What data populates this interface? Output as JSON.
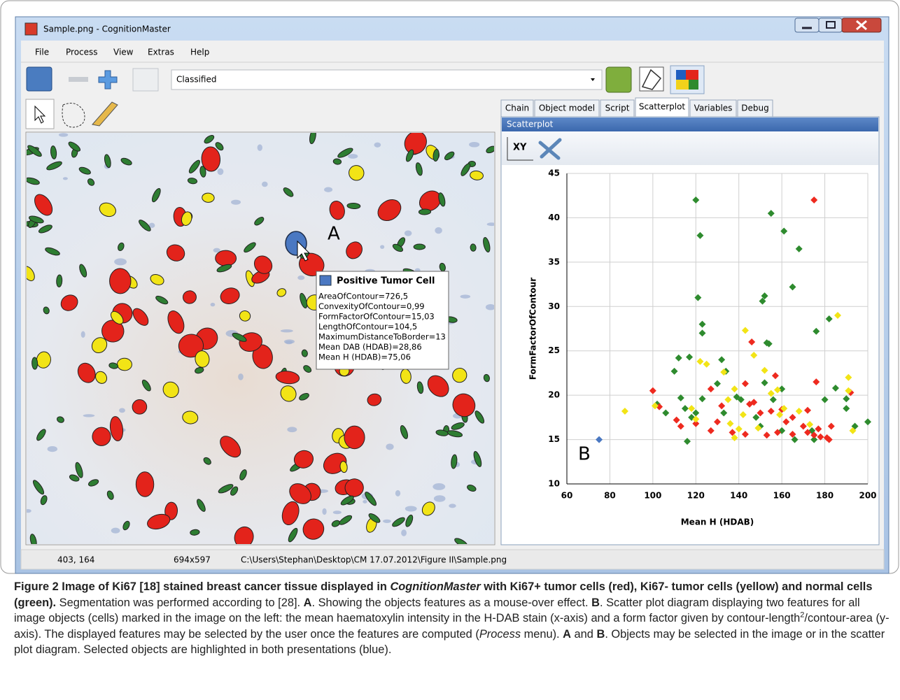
{
  "window": {
    "title": "Sample.png - CognitionMaster",
    "menu": [
      "File",
      "Process",
      "View",
      "Extras",
      "Help"
    ],
    "combo": "Classified",
    "tabs": [
      "Chain",
      "Object model",
      "Script",
      "Scatterplot",
      "Variables",
      "Debug"
    ],
    "panel_title": "Scatterplot",
    "panel_tool": "XY"
  },
  "image": {
    "label": "A",
    "tooltip": {
      "title": "Positive Tumor Cell",
      "lines": [
        "AreaOfContour=726,5",
        "ConvexityOfContour=0,99",
        "FormFactorOfContour=15,03",
        "LengthOfContour=104,5",
        "MaximumDistanceToBorder=13",
        "Mean DAB (HDAB)=28,86",
        "Mean H (HDAB)=75,06"
      ]
    }
  },
  "status": [
    "403, 164",
    "694x597",
    "C:\\Users\\Stephan\\Desktop\\CM 17.07.2012\\Figure II\\Sample.png"
  ],
  "chart_data": {
    "type": "scatter",
    "xlabel": "Mean H (HDAB)",
    "ylabel": "FormFactorOfContour",
    "annotation": "B",
    "xlim": [
      60,
      200
    ],
    "ylim": [
      10,
      45
    ],
    "xticks": [
      60,
      80,
      100,
      120,
      140,
      160,
      180,
      200
    ],
    "yticks": [
      10,
      15,
      20,
      25,
      30,
      35,
      40,
      45
    ],
    "grid": true,
    "series": [
      {
        "color": "#2e8b2e",
        "x": [
          120,
          122,
          155,
          161,
          168,
          165,
          121,
          152,
          151,
          123,
          123,
          153,
          154,
          182,
          176,
          112,
          117,
          110,
          132,
          134,
          130,
          113,
          102,
          106,
          115,
          118,
          123,
          139,
          141,
          152,
          156,
          148,
          150,
          160,
          166,
          116,
          185,
          190,
          194,
          200,
          190,
          175,
          174,
          133,
          120,
          160,
          180
        ],
        "y": [
          42,
          38,
          40.5,
          38.5,
          36.5,
          32.2,
          31,
          31.2,
          30.6,
          28,
          27,
          25.9,
          25.8,
          28.6,
          27.2,
          24.2,
          24.3,
          22.7,
          24,
          22.7,
          21.3,
          19.7,
          19,
          18,
          18.5,
          17.5,
          19.6,
          19.8,
          19.5,
          21.4,
          19.5,
          17.5,
          16.5,
          16,
          15,
          14.8,
          20.8,
          18.5,
          16.5,
          17,
          19.6,
          15,
          16,
          18,
          18,
          20.7,
          19.5
        ]
      },
      {
        "color": "#ee2a1f",
        "x": [
          175,
          100,
          103,
          111,
          113,
          127,
          132,
          127,
          146,
          143,
          145,
          150,
          157,
          155,
          160,
          162,
          153,
          158,
          165,
          170,
          172,
          176,
          175,
          178,
          182,
          181,
          183,
          192,
          137,
          143,
          147,
          165,
          172,
          177,
          130,
          120
        ],
        "y": [
          42,
          20.5,
          18.7,
          17.2,
          16.5,
          20.7,
          18.8,
          16,
          26,
          21.3,
          19,
          18,
          22.2,
          18.2,
          18.4,
          17,
          15.5,
          15.8,
          17.5,
          16.5,
          18.3,
          21.5,
          15.5,
          15.3,
          15,
          15.2,
          16.5,
          20.3,
          15.8,
          15.6,
          19.2,
          15.6,
          15.8,
          16.2,
          17,
          16.8
        ]
      },
      {
        "color": "#f2e416",
        "x": [
          87,
          101,
          143,
          147,
          118,
          120,
          125,
          122,
          138,
          136,
          138,
          140,
          135,
          149,
          155,
          158,
          159,
          186,
          191,
          193,
          191,
          133,
          152,
          161,
          173,
          142,
          168
        ],
        "y": [
          18.2,
          18.8,
          27.3,
          24.5,
          18.5,
          17.3,
          23.5,
          23.8,
          20.7,
          16.8,
          15.2,
          16.2,
          19.5,
          16.3,
          20.2,
          20.6,
          17.8,
          29,
          22,
          16,
          20.5,
          22.6,
          22.8,
          18.5,
          16.7,
          17.8,
          18.2
        ]
      },
      {
        "color": "#4a78c2",
        "x": [
          75
        ],
        "y": [
          15
        ]
      }
    ]
  },
  "caption": {
    "parts": [
      "Figure 2 Image of Ki67 [18] stained breast cancer tissue displayed in ",
      "CognitionMaster",
      " with Ki67+ tumor cells (red), Ki67- tumor cells (yellow) and normal cells (green).",
      " Segmentation was performed according to [28]. ",
      "A",
      ". Showing the objects features as a mouse-over effect. ",
      "B",
      ". Scatter plot diagram displaying two features for all image objects (cells) marked in the image on the left: the mean haematoxylin intensity in the H-DAB stain (x-axis) and a form factor given by contour-length",
      "2",
      "/contour-area (y-axis). The displayed features may be selected by the user once the features are computed (",
      "Process",
      " menu). ",
      "A",
      " and ",
      "B",
      ". Objects may be selected in the image or in the scatter plot diagram. Selected objects are highlighted in both presentations (blue)."
    ]
  }
}
